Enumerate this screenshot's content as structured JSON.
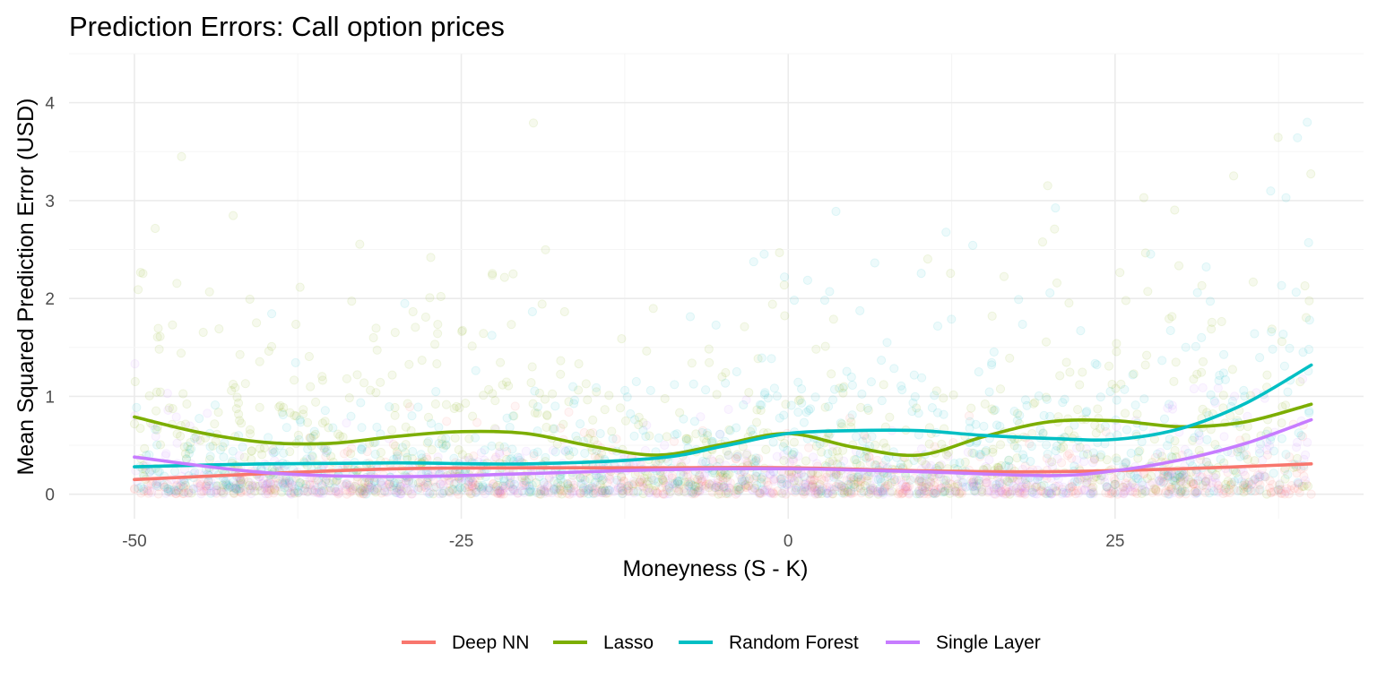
{
  "chart_data": {
    "type": "scatter",
    "title": "Prediction Errors: Call option prices",
    "xlabel": "Moneyness (S - K)",
    "ylabel": "Mean Squared Prediction Error (USD)",
    "xlim": [
      -55,
      44
    ],
    "ylim": [
      -0.25,
      4.5
    ],
    "x_ticks": [
      -50,
      -25,
      0,
      25
    ],
    "y_ticks": [
      0,
      1,
      2,
      3,
      4
    ],
    "grid": true,
    "legend_position": "bottom",
    "series": [
      {
        "name": "Deep NN",
        "color": "#F8766D",
        "smooth": {
          "x": [
            -50,
            -40,
            -30,
            -20,
            -10,
            0,
            10,
            20,
            30,
            40
          ],
          "y": [
            0.15,
            0.21,
            0.26,
            0.27,
            0.27,
            0.27,
            0.24,
            0.23,
            0.26,
            0.31
          ]
        }
      },
      {
        "name": "Lasso",
        "color": "#7CAE00",
        "smooth": {
          "x": [
            -50,
            -45,
            -40,
            -35,
            -30,
            -25,
            -20,
            -15,
            -10,
            -5,
            0,
            5,
            10,
            15,
            20,
            25,
            30,
            35,
            40
          ],
          "y": [
            0.79,
            0.63,
            0.53,
            0.52,
            0.59,
            0.64,
            0.62,
            0.49,
            0.4,
            0.51,
            0.62,
            0.48,
            0.4,
            0.59,
            0.74,
            0.75,
            0.69,
            0.74,
            0.92
          ]
        }
      },
      {
        "name": "Random Forest",
        "color": "#00BFC4",
        "smooth": {
          "x": [
            -50,
            -40,
            -30,
            -20,
            -10,
            -5,
            0,
            5,
            10,
            15,
            20,
            25,
            30,
            35,
            40
          ],
          "y": [
            0.28,
            0.31,
            0.32,
            0.31,
            0.37,
            0.49,
            0.62,
            0.65,
            0.65,
            0.6,
            0.57,
            0.56,
            0.67,
            0.93,
            1.32
          ]
        }
      },
      {
        "name": "Single Layer",
        "color": "#C77CFF",
        "smooth": {
          "x": [
            -50,
            -40,
            -30,
            -20,
            -10,
            0,
            10,
            20,
            25,
            30,
            35,
            40
          ],
          "y": [
            0.38,
            0.22,
            0.18,
            0.21,
            0.25,
            0.26,
            0.23,
            0.19,
            0.24,
            0.35,
            0.52,
            0.76
          ]
        }
      }
    ]
  }
}
